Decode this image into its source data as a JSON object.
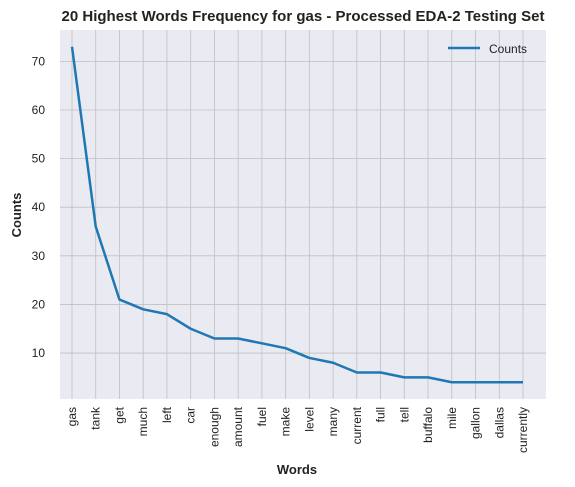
{
  "chart_data": {
    "type": "line",
    "title": "20 Highest Words Frequency for gas - Processed EDA-2 Testing Set",
    "xlabel": "Words",
    "ylabel": "Counts",
    "categories": [
      "gas",
      "tank",
      "get",
      "much",
      "left",
      "car",
      "enough",
      "amount",
      "fuel",
      "make",
      "level",
      "many",
      "current",
      "full",
      "tell",
      "buffalo",
      "mile",
      "gallon",
      "dallas",
      "currently"
    ],
    "series": [
      {
        "name": "Counts",
        "values": [
          73,
          36,
          21,
          19,
          18,
          15,
          13,
          13,
          12,
          11,
          9,
          8,
          6,
          6,
          5,
          5,
          4,
          4,
          4,
          4
        ]
      }
    ],
    "ylim": [
      0.55,
      76.45
    ],
    "yticks": [
      10,
      20,
      30,
      40,
      50,
      60,
      70
    ],
    "grid": true,
    "legend_position": "top-right",
    "colors": {
      "line": "#1f77b4",
      "plot_bg": "#eaeaf2",
      "grid": "#c0c0c0"
    }
  }
}
